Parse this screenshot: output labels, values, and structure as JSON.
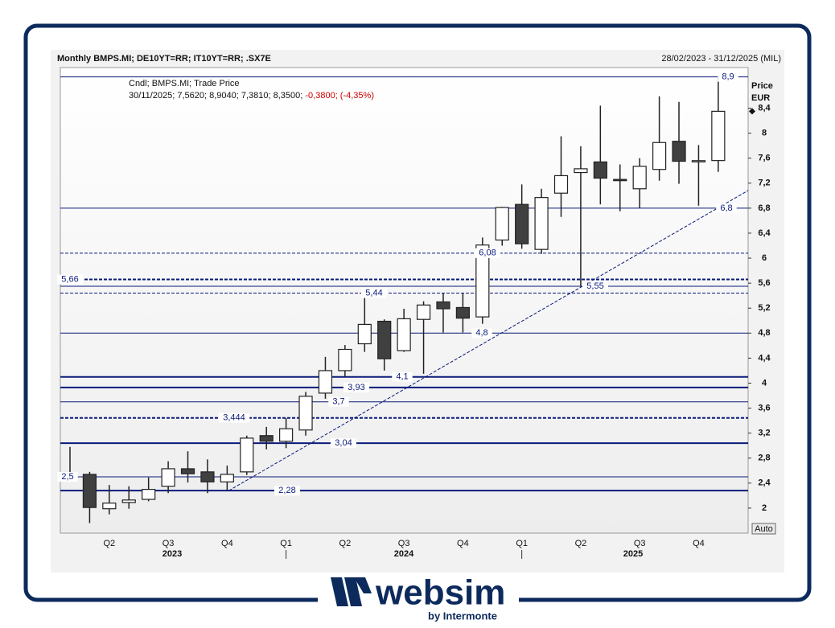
{
  "chart_data": {
    "type": "candlestick",
    "title": "Monthly BMPS.MI; DE10YT=RR; IT10YT=RR; .SX7E",
    "date_range": "28/02/2023 - 31/12/2025 (MIL)",
    "legend_label": "Cndl; BMPS.MI; Trade Price",
    "info": "30/11/2025; 7,5620; 8,9040; 7,3810; 8,3500;",
    "info_change": "-0,3800; (-4,35%)",
    "y_axis_label": "Price",
    "y_axis_unit": "EUR",
    "auto_button": "Auto",
    "quarters": [
      "Q2",
      "Q3",
      "Q4",
      "Q1",
      "Q2",
      "Q3",
      "Q4",
      "Q1",
      "Q2",
      "Q3",
      "Q4"
    ],
    "years": [
      "2023",
      "2024",
      "2025"
    ],
    "up_color": "#ffffff",
    "down_color": "#404040",
    "level_color": "#0a1a7a",
    "open": [
      2.5,
      2.54,
      1.99,
      2.09,
      2.14,
      2.35,
      2.63,
      2.58,
      2.42,
      2.58,
      3.16,
      3.07,
      3.25,
      3.84,
      4.2,
      4.63,
      4.99,
      4.52,
      5.02,
      5.3,
      5.21,
      5.06,
      6.29,
      6.86,
      6.14,
      7.04,
      7.37,
      7.54,
      7.26,
      7.11,
      7.42,
      7.87,
      7.55,
      7.562
    ],
    "high": [
      2.98,
      2.58,
      2.37,
      2.35,
      2.49,
      2.75,
      2.91,
      2.78,
      2.68,
      3.16,
      3.3,
      3.44,
      3.86,
      4.42,
      4.61,
      5.38,
      5.02,
      5.19,
      5.31,
      5.44,
      5.44,
      6.33,
      6.82,
      7.18,
      7.11,
      7.95,
      7.79,
      8.44,
      7.5,
      7.6,
      8.59,
      8.5,
      7.81,
      8.904
    ],
    "low": [
      2.48,
      1.76,
      1.9,
      1.99,
      2.11,
      2.24,
      2.41,
      2.24,
      2.28,
      2.53,
      2.94,
      2.96,
      3.16,
      3.75,
      4.1,
      4.5,
      4.2,
      4.5,
      4.15,
      4.81,
      4.81,
      4.95,
      6.2,
      6.15,
      6.07,
      6.66,
      5.55,
      6.86,
      6.75,
      6.8,
      7.24,
      7.19,
      6.84,
      7.381
    ],
    "close": [
      2.52,
      2.01,
      2.08,
      2.13,
      2.3,
      2.63,
      2.55,
      2.42,
      2.54,
      3.12,
      3.07,
      3.27,
      3.79,
      4.2,
      4.54,
      4.94,
      4.39,
      5.03,
      5.25,
      5.19,
      5.04,
      6.21,
      6.81,
      6.23,
      6.97,
      7.32,
      7.43,
      7.28,
      7.24,
      7.47,
      7.85,
      7.55,
      7.56,
      8.35
    ],
    "levels": [
      {
        "value": 8.9,
        "label": "8,9",
        "style": "solid"
      },
      {
        "value": 6.8,
        "label": "6,8",
        "style": "solid"
      },
      {
        "value": 6.08,
        "label": "6,08",
        "style": "dashed"
      },
      {
        "value": 5.66,
        "label": "5,66",
        "style": "dashed-bold"
      },
      {
        "value": 5.55,
        "label": "5,55",
        "style": "solid"
      },
      {
        "value": 5.44,
        "label": "5,44",
        "style": "dashed"
      },
      {
        "value": 4.8,
        "label": "4,8",
        "style": "solid"
      },
      {
        "value": 4.1,
        "label": "4,1",
        "style": "bold"
      },
      {
        "value": 3.93,
        "label": "3,93",
        "style": "bold"
      },
      {
        "value": 3.7,
        "label": "3,7",
        "style": "solid"
      },
      {
        "value": 3.444,
        "label": "3,444",
        "style": "dashed-bold"
      },
      {
        "value": 3.04,
        "label": "3,04",
        "style": "bold"
      },
      {
        "value": 2.5,
        "label": "2,5",
        "style": "solid"
      },
      {
        "value": 2.28,
        "label": "2,28",
        "style": "bold"
      }
    ],
    "trendline": {
      "start": 2.28,
      "end": 5.55
    },
    "ylim": [
      1.6,
      9.05
    ],
    "yticks": [
      2,
      {
        "value": 2.4,
        "label": "2,4"
      },
      {
        "value": 2.8,
        "label": "2,8"
      },
      {
        "value": 3.2,
        "label": "3,2"
      },
      {
        "value": 3.6,
        "label": "3,6"
      },
      4,
      {
        "value": 4.4,
        "label": "4,4"
      },
      {
        "value": 4.8,
        "label": "4,8"
      },
      {
        "value": 5.2,
        "label": "5,2"
      },
      {
        "value": 5.6,
        "label": "5,6"
      },
      6,
      {
        "value": 6.4,
        "label": "6,4"
      },
      {
        "value": 6.8,
        "label": "6,8"
      },
      {
        "value": 7.2,
        "label": "7,2"
      },
      {
        "value": 7.6,
        "label": "7,6"
      },
      8,
      {
        "value": 8.4,
        "label": "8,4"
      }
    ]
  },
  "logo": {
    "name": "websim",
    "tagline": "by Intermonte"
  }
}
